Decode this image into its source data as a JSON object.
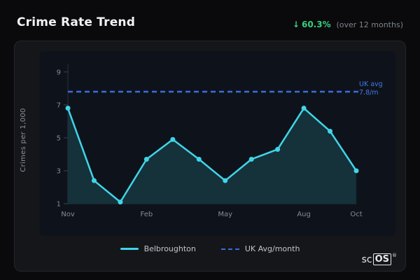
{
  "header": {
    "title": "Crime Rate Trend",
    "stat_arrow": "↓",
    "stat_value": "60.3%",
    "stat_caption": "(over 12 months)"
  },
  "chart_data": {
    "type": "line",
    "title": "Crime Rate Trend",
    "ylabel": "Crimes per 1,000",
    "x": [
      "Nov",
      "Dec",
      "Jan",
      "Feb",
      "Mar",
      "Apr",
      "May",
      "Jun",
      "Jul",
      "Aug",
      "Sep",
      "Oct"
    ],
    "series": [
      {
        "name": "Belbroughton",
        "type": "line",
        "values": [
          6.8,
          2.4,
          1.1,
          3.7,
          4.9,
          3.7,
          2.4,
          3.7,
          4.3,
          6.8,
          5.4,
          3.0
        ]
      },
      {
        "name": "UK Avg/month",
        "type": "reference",
        "value": 7.8
      }
    ],
    "y_ticks": [
      1,
      3,
      5,
      7,
      9
    ],
    "x_tick_labels": [
      "Nov",
      "Feb",
      "May",
      "Aug",
      "Oct"
    ],
    "x_tick_indices": [
      0,
      3,
      6,
      9,
      11
    ],
    "ylim": [
      1,
      9.5
    ],
    "grid": false,
    "legend_position": "bottom",
    "annotation": {
      "line1": "UK avg",
      "line2": "7.8/m"
    },
    "colors": {
      "line": "#41d4e8",
      "area": "#16343d",
      "reference": "#3f6ae0",
      "stat_green": "#35d07f"
    }
  },
  "legend": [
    {
      "label": "Belbroughton"
    },
    {
      "label": "UK Avg/month"
    }
  ],
  "logo": {
    "prefix": "sc",
    "suffix": "OS",
    "reg": "®"
  }
}
